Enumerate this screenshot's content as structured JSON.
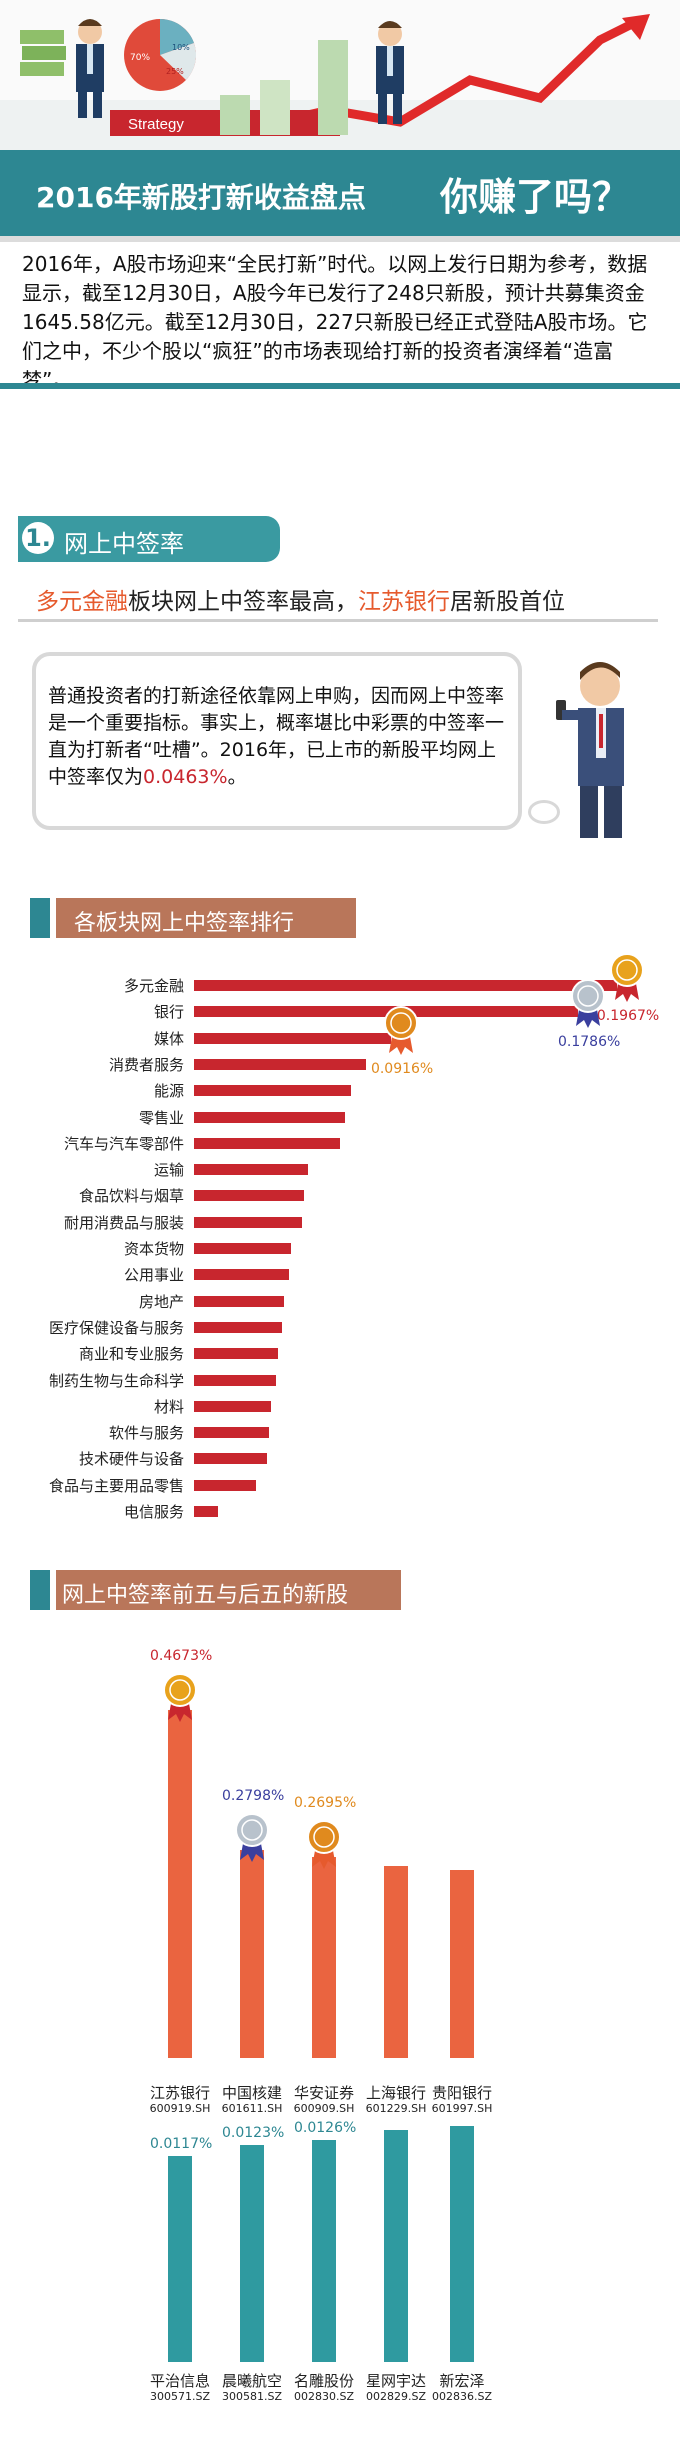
{
  "hero": {
    "strategy_label": "Strategy"
  },
  "pie_labels": [
    "70%",
    "10%",
    "25%"
  ],
  "title": {
    "main": "2016年新股打新收益盘点",
    "tagline": "你赚了吗？"
  },
  "intro": "2016年，A股市场迎来“全民打新”时代。以网上发行日期为参考，数据显示，截至12月30日，A股今年已发行了248只新股，预计共募集资金1645.58亿元。截至12月30日，227只新股已经正式登陆A股市场。它们之中，不少个股以“疯狂”的市场表现给打新的投资者演绎着“造富梦”。",
  "section1": {
    "number": "1.",
    "title": "网上中签率",
    "subtitle_hl1": "多元金融",
    "subtitle_mid": "板块网上中签率最高，",
    "subtitle_hl2": "江苏银行",
    "subtitle_end": "居新股首位",
    "bubble_text": "普通投资者的打新途径依靠网上申购，因而网上中签率是一个重要指标。事实上，概率堪比中彩票的中签率一直为打新者“吐槽”。2016年，已上市的新股平均网上中签率仅为",
    "bubble_number": "0.0463%",
    "bubble_end": "。"
  },
  "colors": {
    "teal": "#2d8792",
    "red": "#c8262e",
    "orange": "#ea6440",
    "brown": "#b9765a"
  },
  "chart_data": [
    {
      "type": "bar",
      "orientation": "horizontal",
      "title": "各板块网上中签率排行",
      "categories": [
        "多元金融",
        "银行",
        "媒体",
        "消费者服务",
        "能源",
        "零售业",
        "汽车与汽车零部件",
        "运输",
        "食品饮料与烟草",
        "耐用消费品与服装",
        "资本货物",
        "公用事业",
        "房地产",
        "医疗保健设备与服务",
        "商业和专业服务",
        "制药生物与生命科学",
        "材料",
        "软件与服务",
        "技术硬件与设备",
        "食品与主要用品零售",
        "电信服务"
      ],
      "values": [
        0.1967,
        0.1786,
        0.0916,
        0.08,
        0.073,
        0.07,
        0.068,
        0.053,
        0.051,
        0.05,
        0.045,
        0.044,
        0.042,
        0.041,
        0.039,
        0.038,
        0.036,
        0.035,
        0.034,
        0.029,
        0.011
      ],
      "data_labels": {
        "0": "0.1967%",
        "1": "0.1786%",
        "2": "0.0916%"
      }
    },
    {
      "type": "bar",
      "title": "网上中签率前五与后五的新股",
      "top5": {
        "categories": [
          "江苏银行",
          "中国核建",
          "华安证券",
          "上海银行",
          "贵阳银行"
        ],
        "codes": [
          "600919.SH",
          "601611.SH",
          "600909.SH",
          "601229.SH",
          "601997.SH"
        ],
        "values": [
          0.4673,
          0.2798,
          0.2695,
          0.258,
          0.252
        ],
        "data_labels": {
          "0": "0.4673%",
          "1": "0.2798%",
          "2": "0.2695%"
        }
      },
      "bottom5": {
        "categories": [
          "平治信息",
          "晨曦航空",
          "名雕股份",
          "星网宇达",
          "新宏泽"
        ],
        "codes": [
          "300571.SZ",
          "300581.SZ",
          "002830.SZ",
          "002829.SZ",
          "002836.SZ"
        ],
        "values": [
          0.0117,
          0.0123,
          0.0126,
          0.0132,
          0.0134
        ],
        "data_labels": {
          "0": "0.0117%",
          "1": "0.0123%",
          "2": "0.0126%"
        }
      }
    }
  ]
}
